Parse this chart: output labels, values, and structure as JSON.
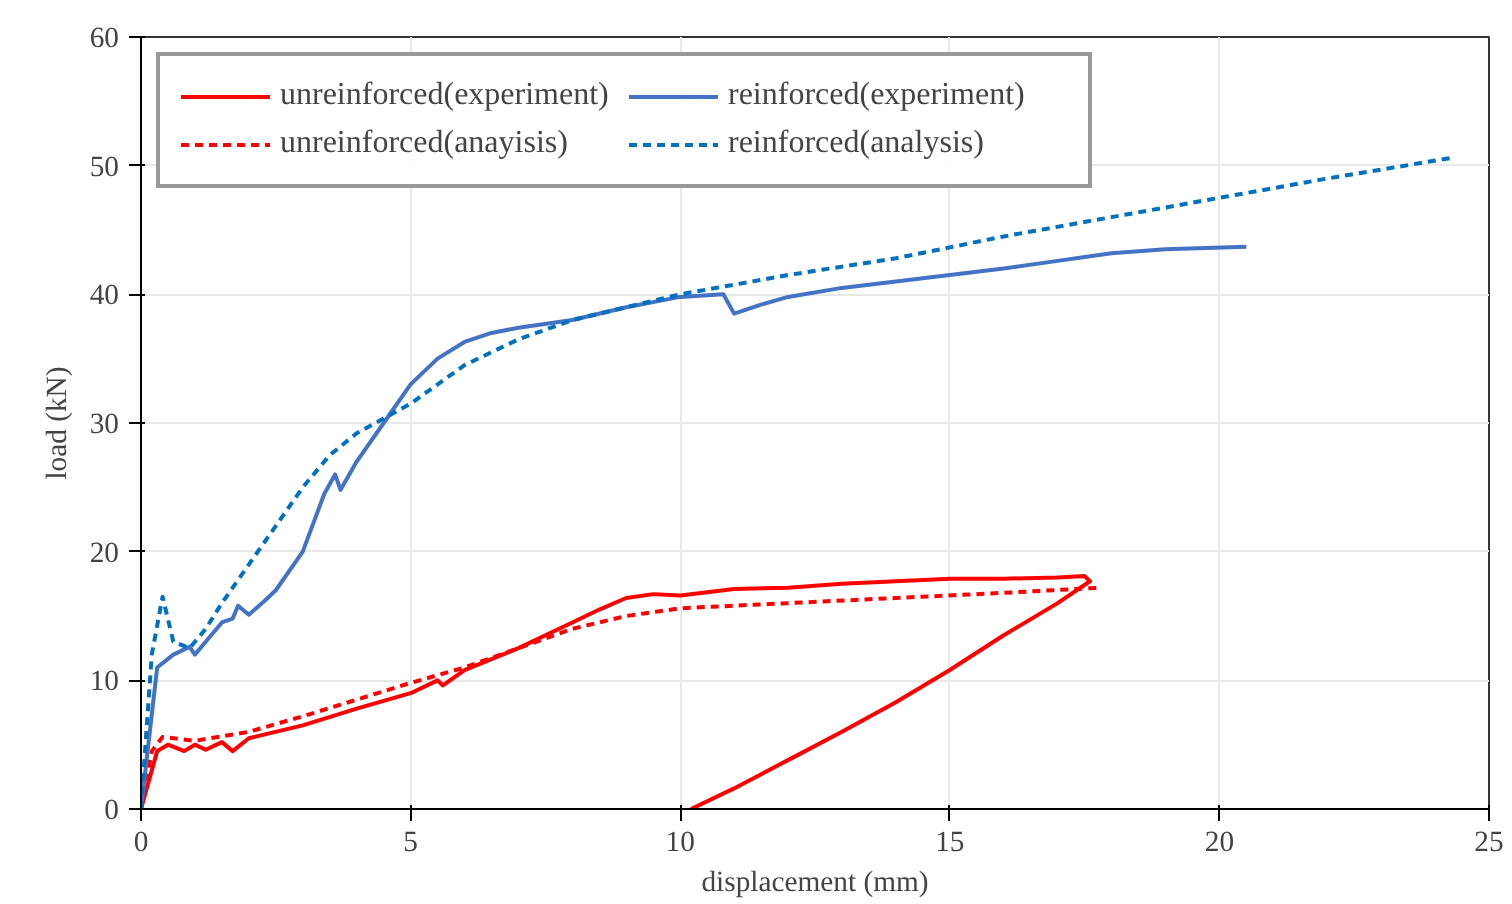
{
  "chart_data": {
    "type": "line",
    "xlabel": "displacement (mm)",
    "ylabel": "load (kN)",
    "xlim": [
      0,
      25
    ],
    "ylim": [
      0,
      60
    ],
    "xticks": [
      0,
      5,
      10,
      15,
      20,
      25
    ],
    "yticks": [
      0,
      10,
      20,
      30,
      40,
      50,
      60
    ],
    "grid": true,
    "legend": "top left",
    "marker": "none",
    "series": [
      {
        "name": "unreinforced(experiment)",
        "color": "#ff0000",
        "line_style": "solid",
        "x": [
          0,
          0.3,
          0.5,
          0.8,
          1,
          1.2,
          1.5,
          1.7,
          2,
          3,
          4,
          5,
          5.5,
          5.6,
          6,
          7,
          8,
          8.5,
          9,
          9.5,
          10,
          11,
          12,
          13,
          14,
          15,
          16,
          17,
          17.5,
          17.6,
          17,
          16,
          15,
          14,
          13,
          12,
          11,
          10.2
        ],
        "values": [
          0,
          4.5,
          5,
          4.5,
          5,
          4.6,
          5.2,
          4.5,
          5.5,
          6.5,
          7.8,
          9,
          10,
          9.6,
          10.8,
          12.5,
          14.5,
          15.5,
          16.4,
          16.7,
          16.6,
          17.1,
          17.2,
          17.5,
          17.7,
          17.9,
          17.9,
          18,
          18.1,
          17.7,
          16,
          13.5,
          10.8,
          8.3,
          6,
          3.8,
          1.6,
          0
        ]
      },
      {
        "name": "unreinforced(anayisis)",
        "color": "#ff0000",
        "line_style": "dashed",
        "x": [
          0,
          0.2,
          0.4,
          1,
          2,
          3,
          4,
          5,
          6,
          7,
          8,
          9,
          10,
          12,
          14,
          16,
          17.8
        ],
        "values": [
          0,
          4.5,
          5.6,
          5.3,
          6,
          7.2,
          8.5,
          9.8,
          11,
          12.5,
          14,
          15,
          15.6,
          16,
          16.4,
          16.8,
          17.2
        ]
      },
      {
        "name": "reinforced(experiment)",
        "color": "#4472c4",
        "line_style": "solid",
        "x": [
          0,
          0.3,
          0.6,
          0.9,
          1,
          1.2,
          1.5,
          1.7,
          1.8,
          2,
          2.3,
          2.5,
          3,
          3.4,
          3.6,
          3.7,
          4,
          4.5,
          5,
          5.5,
          6,
          6.5,
          7,
          8,
          9,
          10,
          10.8,
          11,
          11.5,
          12,
          13,
          14,
          15,
          16,
          17,
          18,
          19,
          20.5
        ],
        "values": [
          0,
          11,
          12,
          12.6,
          12,
          13,
          14.5,
          14.8,
          15.8,
          15.1,
          16.2,
          17,
          20,
          24.5,
          26,
          24.8,
          27,
          30,
          33,
          35,
          36.3,
          37,
          37.4,
          38,
          39,
          39.8,
          40,
          38.5,
          39.2,
          39.8,
          40.5,
          41,
          41.5,
          42,
          42.6,
          43.2,
          43.5,
          43.7
        ]
      },
      {
        "name": "reinforced(analysis)",
        "color": "#0070c0",
        "line_style": "dashed",
        "x": [
          0,
          0.2,
          0.4,
          0.6,
          0.9,
          1.2,
          1.5,
          2,
          2.5,
          3,
          3.5,
          4,
          5,
          6,
          7,
          8,
          9,
          10,
          12,
          14,
          16,
          18,
          20,
          22,
          24.3
        ],
        "values": [
          0,
          12,
          16.5,
          13,
          12.5,
          14,
          16,
          19,
          22,
          25,
          27.5,
          29.2,
          31.5,
          34.5,
          36.5,
          38,
          39,
          40,
          41.5,
          42.8,
          44.5,
          46,
          47.5,
          49,
          50.6
        ]
      }
    ]
  }
}
